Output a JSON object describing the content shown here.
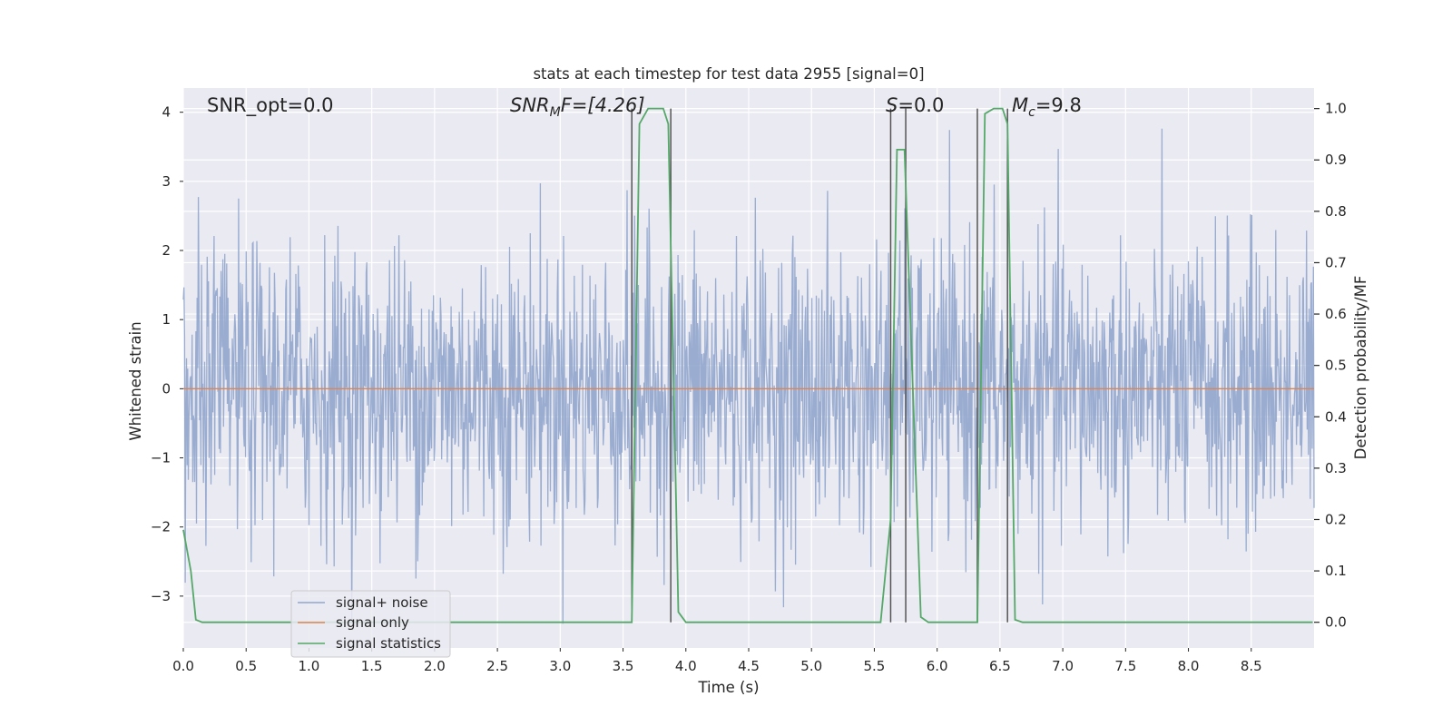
{
  "chart_data": {
    "type": "line",
    "title": "stats at each timestep for test data 2955 [signal=0]",
    "xlabel": "Time (s)",
    "ylabel": "Whitened strain",
    "ylabel_right": "Detection probability/MF",
    "xlim": [
      0,
      9.0
    ],
    "ylim": [
      -3.75,
      4.35
    ],
    "ylim_right": [
      -0.05,
      1.04
    ],
    "x_ticks": [
      "0.0",
      "0.5",
      "1.0",
      "1.5",
      "2.0",
      "2.5",
      "3.0",
      "3.5",
      "4.0",
      "4.5",
      "5.0",
      "5.5",
      "6.0",
      "6.5",
      "7.0",
      "7.5",
      "8.0",
      "8.5"
    ],
    "y_ticks": [
      "4",
      "3",
      "2",
      "1",
      "0",
      "−1",
      "−2",
      "−3"
    ],
    "y_right_ticks": [
      "1.0",
      "0.9",
      "0.8",
      "0.7",
      "0.6",
      "0.5",
      "0.4",
      "0.3",
      "0.2",
      "0.1",
      "0.0"
    ],
    "grid": true,
    "legend_position": "lower-left",
    "annotations": {
      "snr_opt": "SNR_opt=0.0",
      "snr_mf_main": "SNR",
      "snr_mf_sub": "M",
      "snr_mf_rest": "F=[4.26]",
      "s_main": "S",
      "s_rest": "=0.0",
      "mc_main": "M",
      "mc_sub": "c",
      "mc_rest": "=9.8"
    },
    "series": [
      {
        "name": "signal+ noise",
        "color": "#91a6cd",
        "description_stats": {
          "typical_min": -2.0,
          "typical_max": 2.0
        }
      },
      {
        "name": "signal only",
        "color": "#dd8452",
        "values_constant": 0.0
      },
      {
        "name": "signal statistics",
        "color": "#55a868",
        "axis": "right",
        "x": [
          0.0,
          0.06,
          0.1,
          0.15,
          3.55,
          3.57,
          3.63,
          3.7,
          3.82,
          3.86,
          3.94,
          4.0,
          5.55,
          5.63,
          5.68,
          5.74,
          5.8,
          5.87,
          5.93,
          6.31,
          6.32,
          6.38,
          6.45,
          6.52,
          6.56,
          6.62,
          6.68,
          8.99
        ],
        "y": [
          0.18,
          0.1,
          0.005,
          0.0,
          0.0,
          0.0,
          0.97,
          1.0,
          1.0,
          0.97,
          0.02,
          0.0,
          0.0,
          0.2,
          0.92,
          0.92,
          0.5,
          0.01,
          0.0,
          0.0,
          0.0,
          0.99,
          1.0,
          1.0,
          0.97,
          0.005,
          0.0,
          0.0
        ]
      }
    ],
    "vlines": [
      3.57,
      3.88,
      5.63,
      5.75,
      6.32,
      6.56
    ]
  },
  "legend": {
    "noise_label": "signal+ noise",
    "signal_label": "signal only",
    "stats_label": "signal statistics"
  }
}
